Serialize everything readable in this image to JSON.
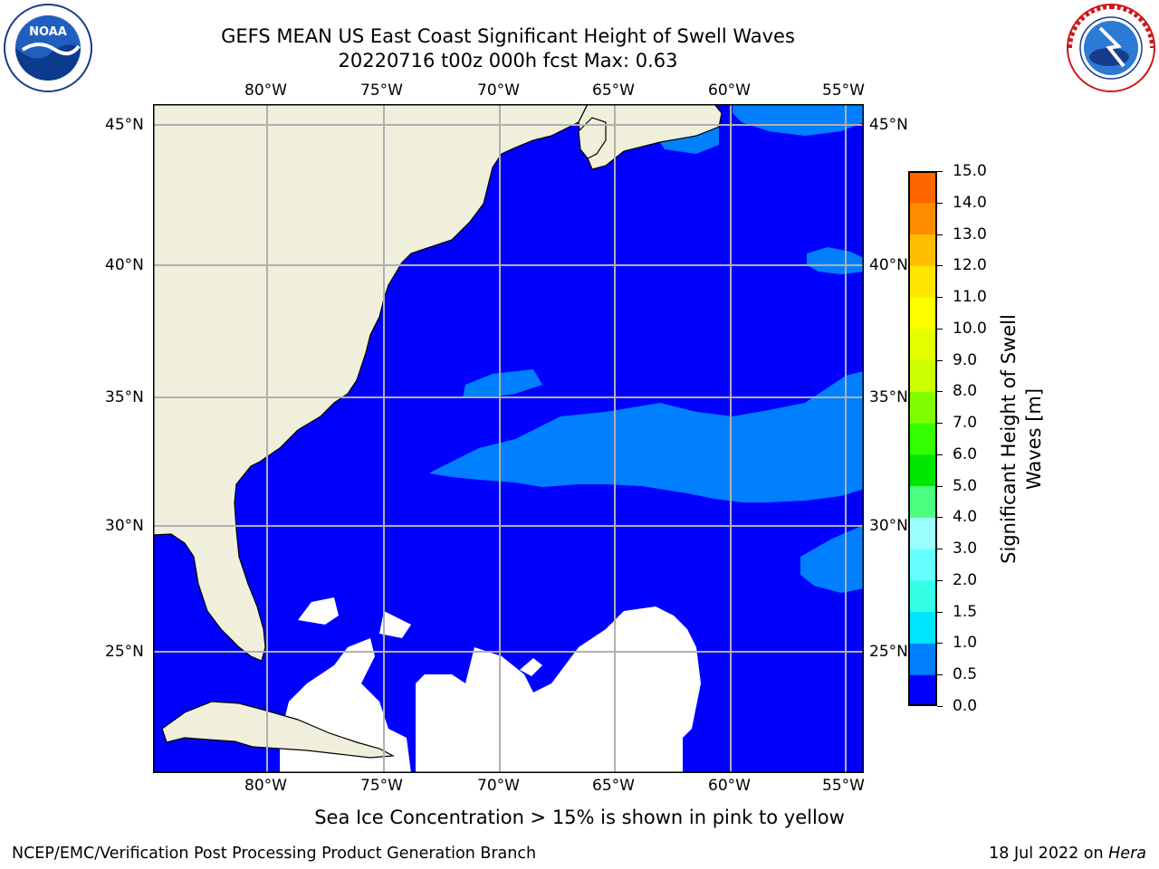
{
  "header": {
    "title_line1": "GEFS MEAN US East Coast Significant Height of Swell Waves",
    "title_line2": "20220716 t00z 000h fcst   Max: 0.63"
  },
  "logos": {
    "noaa_text": "NOAA",
    "noaa_ring": "NATIONAL OCEANIC AND ATMOSPHERIC ADMINISTRATION · U.S. DEPARTMENT OF COMMERCE",
    "nws_ring": "NATIONAL WEATHER SERVICE"
  },
  "map": {
    "lon_labels": [
      "80°W",
      "75°W",
      "70°W",
      "65°W",
      "60°W",
      "55°W"
    ],
    "lat_labels": [
      "45°N",
      "40°N",
      "35°N",
      "30°N",
      "25°N"
    ],
    "land_color": "#efefdc",
    "ocean_low_color": "#0000ff",
    "ocean_high_color": "#0080ff",
    "no_data_color": "#ffffff",
    "grid_color": "#b0b0b0"
  },
  "colorbar": {
    "ticks": [
      "0.0",
      "0.5",
      "1.0",
      "1.5",
      "2.0",
      "3.0",
      "4.0",
      "5.0",
      "6.0",
      "7.0",
      "8.0",
      "9.0",
      "10.0",
      "11.0",
      "12.0",
      "13.0",
      "14.0",
      "15.0"
    ],
    "colors": [
      "#0000ff",
      "#0080ff",
      "#00e5ff",
      "#33ffe5",
      "#66ffff",
      "#99ffff",
      "#4dff80",
      "#00e600",
      "#33ff00",
      "#80ff00",
      "#ccff00",
      "#e6ff00",
      "#ffff00",
      "#ffe600",
      "#ffbf00",
      "#ff8c00",
      "#ff6600",
      "#ff3300",
      "#ff0000"
    ],
    "label_line1": "Significant Height of Swell",
    "label_line2": "Waves [m]"
  },
  "note": "Sea Ice Concentration > 15% is shown in pink to yellow",
  "footer": {
    "left": "NCEP/EMC/Verification Post Processing Product Generation Branch",
    "right_prefix": "18 Jul 2022 on ",
    "right_host": "Hera"
  }
}
